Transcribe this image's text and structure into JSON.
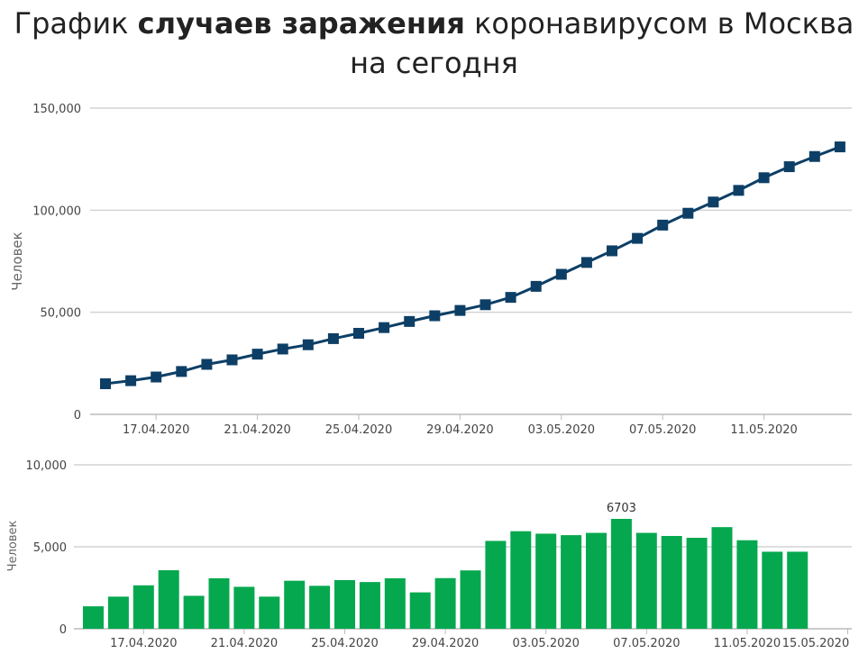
{
  "title": {
    "part1": "График ",
    "bold": "случаев заражения",
    "part2": " коронавирусом в Москва на сегодня"
  },
  "chart_data": [
    {
      "type": "line",
      "ylabel": "Человек",
      "ylim": [
        0,
        150000
      ],
      "yticks": [
        "0",
        "50,000",
        "100,000",
        "150,000"
      ],
      "ytick_values": [
        0,
        50000,
        100000,
        150000
      ],
      "x_start": "15.04.2020",
      "xtick_labels": [
        "17.04.2020",
        "21.04.2020",
        "25.04.2020",
        "29.04.2020",
        "03.05.2020",
        "07.05.2020",
        "11.05.2020"
      ],
      "xtick_index": [
        2,
        6,
        10,
        14,
        18,
        22,
        26
      ],
      "color": "#0d3f66",
      "values": [
        15000,
        16500,
        18300,
        21000,
        24500,
        26700,
        29500,
        32000,
        34100,
        37100,
        39700,
        42500,
        45500,
        48300,
        50900,
        53700,
        57300,
        62700,
        68600,
        74400,
        80100,
        86200,
        92700,
        98500,
        104000,
        109700,
        115900,
        121300,
        126300,
        131000
      ]
    },
    {
      "type": "bar",
      "ylabel": "Человек",
      "ylim": [
        0,
        10000
      ],
      "yticks": [
        "0",
        "5,000",
        "10,000"
      ],
      "ytick_values": [
        0,
        5000,
        10000
      ],
      "xtick_labels": [
        "17.04.2020",
        "21.04.2020",
        "25.04.2020",
        "29.04.2020",
        "03.05.2020",
        "07.05.2020",
        "11.05.2020",
        "15.05.2020"
      ],
      "xtick_index": [
        2,
        6,
        10,
        14,
        18,
        22,
        26,
        30
      ],
      "color": "#06a84f",
      "values": [
        1370,
        1960,
        2650,
        3570,
        2010,
        3080,
        2560,
        1960,
        2930,
        2620,
        2970,
        2850,
        3080,
        2220,
        3090,
        3560,
        5360,
        5950,
        5800,
        5710,
        5850,
        6703,
        5850,
        5660,
        5550,
        6200,
        5400,
        4700,
        4700
      ],
      "annotation": {
        "index": 21,
        "label": "6703"
      }
    }
  ]
}
